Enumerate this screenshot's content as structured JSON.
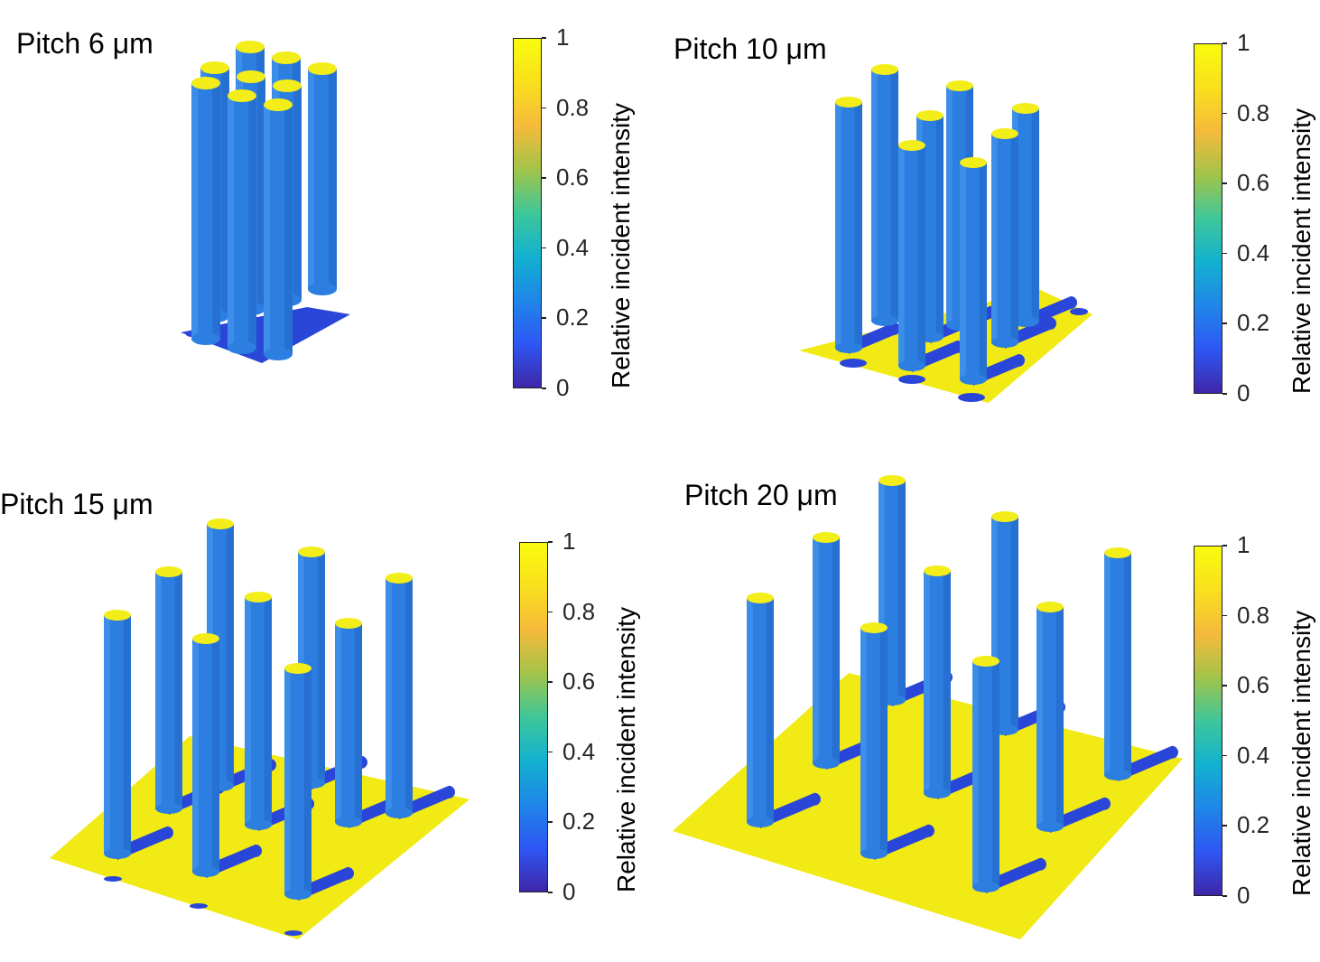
{
  "colormap": {
    "stops": [
      "#3e26a8",
      "#2e57f4",
      "#1f86e8",
      "#12b1d0",
      "#3ec799",
      "#a2c449",
      "#f6ba3b",
      "#f9e01d",
      "#f9fb0e"
    ],
    "pillar_color": "#2c7ee0",
    "pillar_shadow": "#1e5fbf",
    "pillar_highlight": "#4a9af0",
    "pillar_top": "#f3ee1a",
    "substrate": "#f1ea14",
    "shadow": "#2a46d8",
    "tick_labels": [
      "0",
      "0.2",
      "0.4",
      "0.6",
      "0.8",
      "1"
    ],
    "label": "Relative incident intensity"
  },
  "panels": [
    {
      "title": "Pitch 6 μm"
    },
    {
      "title": "Pitch 10 μm"
    },
    {
      "title": "Pitch 15 μm"
    },
    {
      "title": "Pitch 20 μm"
    }
  ]
}
